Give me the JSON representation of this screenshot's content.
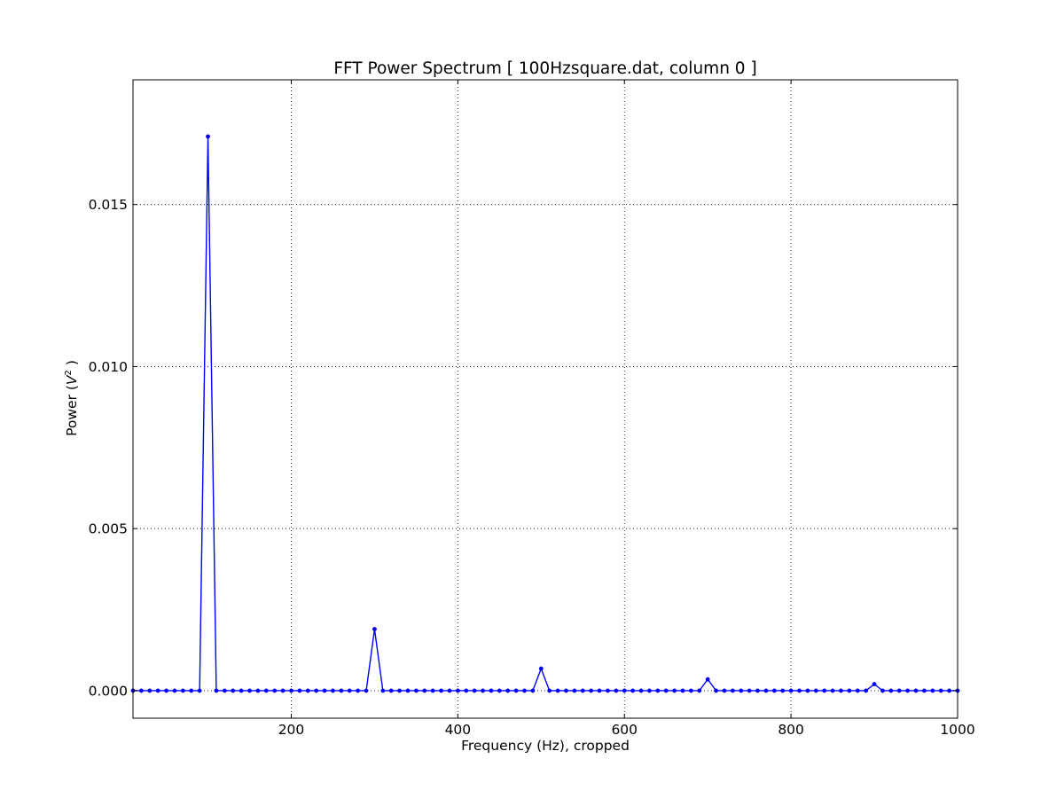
{
  "colors": {
    "series": "#0000ff",
    "axes": "#000000",
    "grid": "#000000",
    "background": "#ffffff"
  },
  "chart_data": {
    "type": "line",
    "title": "FFT Power Spectrum  [ 100Hzsquare.dat, column 0 ]",
    "xlabel": "Frequency (Hz),  cropped",
    "ylabel_text": "Power (",
    "ylabel_math": "V",
    "ylabel_sup": "2",
    "ylabel_close": " )",
    "xlim": [
      10,
      1000
    ],
    "ylim": [
      -0.00085,
      0.01885
    ],
    "xticks": [
      200,
      400,
      600,
      800,
      1000
    ],
    "xtick_labels": [
      "200",
      "400",
      "600",
      "800",
      "1000"
    ],
    "yticks": [
      0.0,
      0.005,
      0.01,
      0.015
    ],
    "ytick_labels": [
      "0.000",
      "0.005",
      "0.010",
      "0.015"
    ],
    "grid": true,
    "marker": "dot",
    "series": [
      {
        "x": [
          10,
          20,
          30,
          40,
          50,
          60,
          70,
          80,
          90,
          100,
          110,
          120,
          130,
          140,
          150,
          160,
          170,
          180,
          190,
          200,
          210,
          220,
          230,
          240,
          250,
          260,
          270,
          280,
          290,
          300,
          310,
          320,
          330,
          340,
          350,
          360,
          370,
          380,
          390,
          400,
          410,
          420,
          430,
          440,
          450,
          460,
          470,
          480,
          490,
          500,
          510,
          520,
          530,
          540,
          550,
          560,
          570,
          580,
          590,
          600,
          610,
          620,
          630,
          640,
          650,
          660,
          670,
          680,
          690,
          700,
          710,
          720,
          730,
          740,
          750,
          760,
          770,
          780,
          790,
          800,
          810,
          820,
          830,
          840,
          850,
          860,
          870,
          880,
          890,
          900,
          910,
          920,
          930,
          940,
          950,
          960,
          970,
          980,
          990,
          1000
        ],
        "y": [
          0,
          0,
          0,
          0,
          0,
          0,
          0,
          0,
          0,
          0.0171,
          0,
          0,
          0,
          0,
          0,
          0,
          0,
          0,
          0,
          0,
          0,
          0,
          0,
          0,
          0,
          0,
          0,
          0,
          0,
          0.0019,
          0,
          0,
          0,
          0,
          0,
          0,
          0,
          0,
          0,
          0,
          0,
          0,
          0,
          0,
          0,
          0,
          0,
          0,
          0,
          0.00068,
          0,
          0,
          0,
          0,
          0,
          0,
          0,
          0,
          0,
          0,
          0,
          0,
          0,
          0,
          0,
          0,
          0,
          0,
          0,
          0.00035,
          0,
          0,
          0,
          0,
          0,
          0,
          0,
          0,
          0,
          0,
          0,
          0,
          0,
          0,
          0,
          0,
          0,
          0,
          0,
          0.0002,
          0,
          0,
          0,
          0,
          0,
          0,
          0,
          0,
          0,
          0
        ]
      }
    ]
  }
}
